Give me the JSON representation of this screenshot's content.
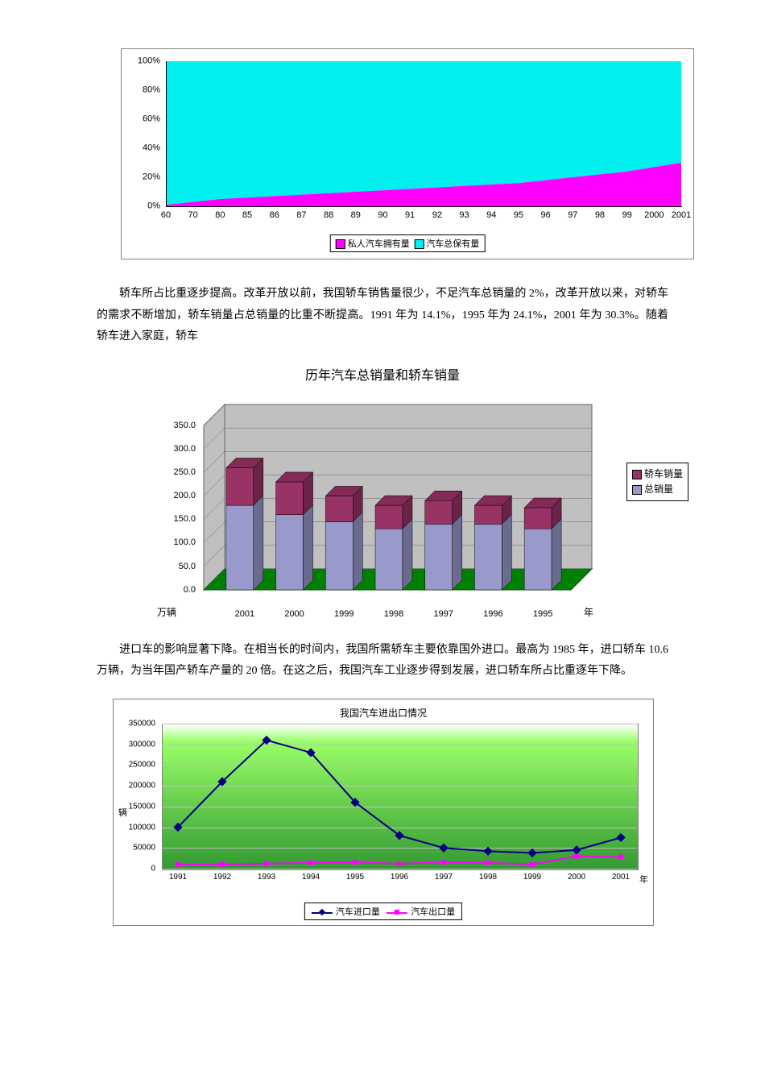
{
  "chart1": {
    "type": "stacked-area-100pct",
    "categories": [
      "60",
      "70",
      "80",
      "85",
      "86",
      "87",
      "88",
      "89",
      "90",
      "91",
      "92",
      "93",
      "94",
      "95",
      "96",
      "97",
      "98",
      "99",
      "2000",
      "2001"
    ],
    "series": [
      {
        "name": "私人汽车拥有量",
        "color": "#ff00ff",
        "values": [
          1,
          3,
          5,
          6,
          7,
          8,
          9,
          10,
          11,
          12,
          13,
          14,
          15,
          16,
          18,
          20,
          22,
          24,
          27,
          30
        ]
      },
      {
        "name": "汽车总保有量",
        "color": "#00f0f0",
        "values": [
          99,
          97,
          95,
          94,
          93,
          92,
          91,
          90,
          89,
          88,
          87,
          86,
          85,
          84,
          82,
          80,
          78,
          76,
          73,
          70
        ]
      }
    ],
    "yticks": [
      "0%",
      "20%",
      "40%",
      "60%",
      "80%",
      "100%"
    ],
    "ylim": [
      0,
      100
    ],
    "grid_color": "#000000",
    "background_color": "#ffffff",
    "legend_items": [
      "私人汽车拥有量",
      "汽车总保有量"
    ]
  },
  "para1": "轿车所占比重逐步提高。改革开放以前，我国轿车销售量很少，不足汽车总销量的 2%，改革开放以来，对轿车的需求不断增加，轿车销量占总销量的比重不断提高。1991 年为 14.1%，1995 年为 24.1%，2001 年为 30.3%。随着轿车进入家庭，轿车",
  "chart2": {
    "type": "stacked-bar-3d",
    "title": "历年汽车总销量和轿车销量",
    "categories": [
      "2001",
      "2000",
      "1999",
      "1998",
      "1997",
      "1996",
      "1995"
    ],
    "series": [
      {
        "name": "轿车销量",
        "color": "#993366"
      },
      {
        "name": "总销量",
        "color": "#9999cc"
      }
    ],
    "total_values": [
      260,
      230,
      200,
      180,
      190,
      180,
      175
    ],
    "jiaoche_values": [
      80,
      70,
      55,
      50,
      50,
      40,
      45
    ],
    "yticks": [
      "0.0",
      "50.0",
      "100.0",
      "150.0",
      "200.0",
      "250.0",
      "300.0",
      "350.0"
    ],
    "ylim": [
      0,
      350
    ],
    "floor_color": "#008000",
    "wall_color": "#c0c0c0",
    "x_unit_left": "万辆",
    "x_unit_right": "年"
  },
  "para2": "进口车的影响显著下降。在相当长的时间内，我国所需轿车主要依靠国外进口。最高为 1985 年，进口轿车 10.6 万辆，为当年国产轿车产量的 20 倍。在这之后，我国汽车工业逐步得到发展，进口轿车所占比重逐年下降。",
  "chart3": {
    "type": "line",
    "title": "我国汽车进出口情况",
    "categories": [
      "1991",
      "1992",
      "1993",
      "1994",
      "1995",
      "1996",
      "1997",
      "1998",
      "1999",
      "2000",
      "2001"
    ],
    "series": [
      {
        "name": "汽车进口量",
        "color": "#000080",
        "marker": "diamond",
        "values": [
          100000,
          210000,
          310000,
          280000,
          160000,
          80000,
          50000,
          42000,
          38000,
          45000,
          75000
        ]
      },
      {
        "name": "汽车出口量",
        "color": "#ff00ff",
        "marker": "square",
        "values": [
          10000,
          10000,
          12000,
          14000,
          15000,
          12000,
          15000,
          14000,
          10000,
          30000,
          28000
        ]
      }
    ],
    "yticks": [
      "0",
      "50000",
      "100000",
      "150000",
      "200000",
      "250000",
      "300000",
      "350000"
    ],
    "ylim": [
      0,
      350000
    ],
    "y_axis_label": "辆",
    "x_unit": "年",
    "plot_bg_top": "#99ff66",
    "plot_bg_bottom": "#339933",
    "grid_color": "#c0c0c0"
  }
}
